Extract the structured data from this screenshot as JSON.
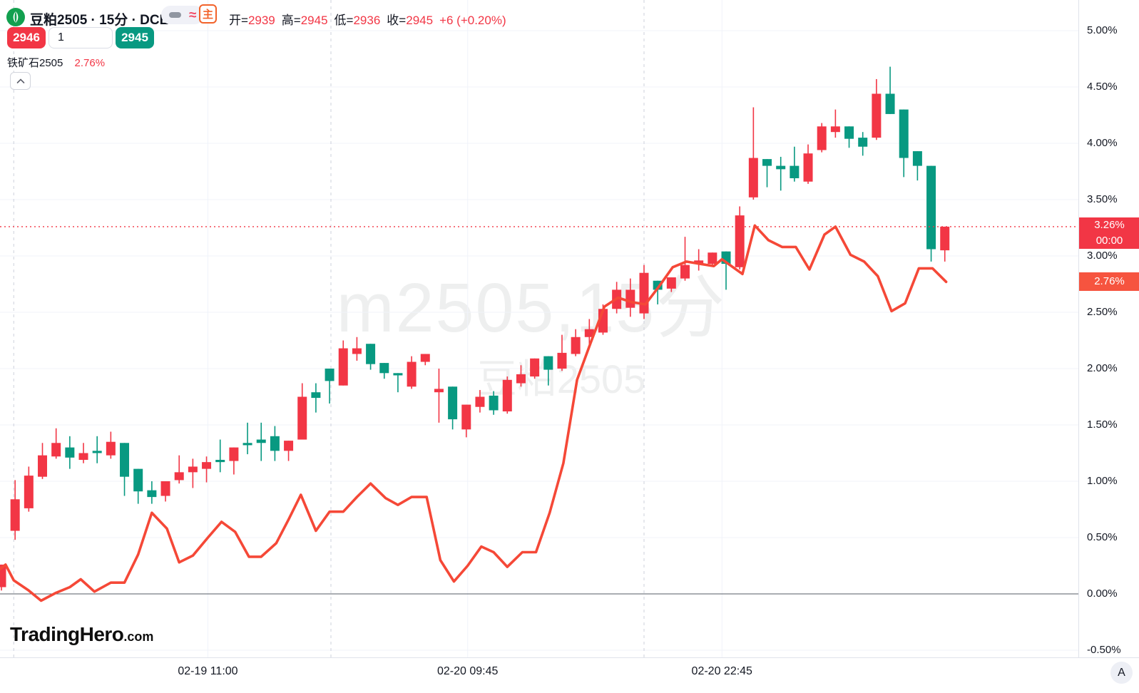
{
  "header": {
    "symbol_title": "豆粕2505 · 15分 · DCE",
    "wave_icon": "≈",
    "main_contract_badge": "主",
    "ohlc": {
      "open_label": "开=",
      "open": "2939",
      "high_label": "高=",
      "high": "2945",
      "low_label": "低=",
      "low": "2936",
      "close_label": "收=",
      "close": "2945",
      "change": "+6 (+0.20%)"
    },
    "sell_button": "2946",
    "qty_value": "1",
    "buy_button": "2945",
    "compare_symbol": "铁矿石2505",
    "compare_change": "2.76%"
  },
  "watermark": {
    "line1": "m2505,15分",
    "line2": "豆粕2505"
  },
  "price_axis": {
    "ticks": [
      {
        "value": 5.0,
        "label": "5.00%"
      },
      {
        "value": 4.5,
        "label": "4.50%"
      },
      {
        "value": 4.0,
        "label": "4.00%"
      },
      {
        "value": 3.5,
        "label": "3.50%"
      },
      {
        "value": 3.0,
        "label": "3.00%"
      },
      {
        "value": 2.5,
        "label": "2.50%"
      },
      {
        "value": 2.0,
        "label": "2.00%"
      },
      {
        "value": 1.5,
        "label": "1.50%"
      },
      {
        "value": 1.0,
        "label": "1.00%"
      },
      {
        "value": 0.5,
        "label": "0.50%"
      },
      {
        "value": 0.0,
        "label": "0.00%"
      },
      {
        "value": -0.5,
        "label": "-0.50%"
      }
    ],
    "price_badge": {
      "value": 3.26,
      "label": "3.26%",
      "countdown": "00:00"
    },
    "compare_badge": {
      "value": 2.77,
      "label": "2.76%"
    }
  },
  "time_axis": {
    "labels": [
      {
        "i": 15.1,
        "text": "02-19 11:00"
      },
      {
        "i": 34.1,
        "text": "02-20 09:45"
      },
      {
        "i": 52.7,
        "text": "02-20 22:45"
      }
    ],
    "auto_button": "A"
  },
  "branding": {
    "name": "TradingHero",
    "tld": ".com"
  },
  "colors": {
    "up": "#F23645",
    "down": "#089981",
    "compare_line": "#F54837",
    "price_line": "#F23645",
    "grid": "#F0F3FA",
    "session_break": "#CDD0DB",
    "zero_line": "#555B66",
    "price_badge_bg": "#F23645",
    "compare_badge_bg": "#F6543F"
  },
  "chart_data": {
    "type": "candlestick",
    "title": "m2505 豆粕2505 15分 percent-change chart with 铁矿石2505 compare line",
    "unit": "percent",
    "ylim": [
      -0.75,
      5.15
    ],
    "grid": true,
    "session_breaks_i": [
      0.9,
      24.1,
      47.0
    ],
    "candles_ohlc_pct": [
      [
        0.06,
        0.26,
        0.03,
        0.26
      ],
      [
        0.56,
        1.01,
        0.48,
        0.84
      ],
      [
        0.76,
        1.13,
        0.73,
        1.05
      ],
      [
        1.04,
        1.34,
        1.02,
        1.23
      ],
      [
        1.22,
        1.47,
        1.2,
        1.34
      ],
      [
        1.3,
        1.4,
        1.11,
        1.21
      ],
      [
        1.19,
        1.34,
        1.16,
        1.25
      ],
      [
        1.27,
        1.4,
        1.16,
        1.25
      ],
      [
        1.23,
        1.44,
        1.2,
        1.35
      ],
      [
        1.34,
        1.34,
        0.87,
        1.04
      ],
      [
        1.11,
        1.11,
        0.8,
        0.91
      ],
      [
        0.92,
        1.0,
        0.8,
        0.86
      ],
      [
        0.87,
        1.0,
        0.82,
        1.0
      ],
      [
        1.01,
        1.23,
        0.98,
        1.08
      ],
      [
        1.08,
        1.2,
        0.94,
        1.13
      ],
      [
        1.11,
        1.22,
        0.99,
        1.17
      ],
      [
        1.19,
        1.37,
        1.08,
        1.17
      ],
      [
        1.18,
        1.3,
        1.06,
        1.3
      ],
      [
        1.34,
        1.52,
        1.24,
        1.32
      ],
      [
        1.37,
        1.52,
        1.18,
        1.34
      ],
      [
        1.4,
        1.49,
        1.18,
        1.27
      ],
      [
        1.27,
        1.36,
        1.18,
        1.36
      ],
      [
        1.37,
        1.87,
        1.37,
        1.75
      ],
      [
        1.79,
        1.87,
        1.61,
        1.74
      ],
      [
        2.0,
        2.0,
        1.69,
        1.89
      ],
      [
        1.85,
        2.25,
        1.85,
        2.18
      ],
      [
        2.13,
        2.28,
        2.07,
        2.18
      ],
      [
        2.22,
        2.22,
        1.99,
        2.04
      ],
      [
        2.05,
        2.05,
        1.91,
        1.96
      ],
      [
        1.96,
        1.96,
        1.79,
        1.94
      ],
      [
        1.84,
        2.11,
        1.82,
        2.06
      ],
      [
        2.06,
        2.13,
        2.03,
        2.13
      ],
      [
        1.79,
        2.0,
        1.52,
        1.82
      ],
      [
        1.84,
        1.84,
        1.46,
        1.55
      ],
      [
        1.46,
        1.68,
        1.39,
        1.68
      ],
      [
        1.66,
        1.81,
        1.61,
        1.75
      ],
      [
        1.76,
        1.8,
        1.59,
        1.63
      ],
      [
        1.62,
        1.93,
        1.6,
        1.9
      ],
      [
        1.87,
        2.03,
        1.84,
        1.95
      ],
      [
        1.93,
        2.09,
        1.91,
        2.09
      ],
      [
        2.11,
        2.11,
        1.85,
        1.99
      ],
      [
        2.0,
        2.3,
        1.98,
        2.14
      ],
      [
        2.13,
        2.35,
        2.11,
        2.28
      ],
      [
        2.28,
        2.44,
        2.19,
        2.35
      ],
      [
        2.32,
        2.57,
        2.3,
        2.53
      ],
      [
        2.53,
        2.77,
        2.49,
        2.7
      ],
      [
        2.54,
        2.8,
        2.46,
        2.7
      ],
      [
        2.49,
        2.92,
        2.44,
        2.85
      ],
      [
        2.78,
        2.78,
        2.57,
        2.7
      ],
      [
        2.71,
        2.81,
        2.68,
        2.81
      ],
      [
        2.8,
        3.17,
        2.78,
        2.92
      ],
      [
        2.93,
        3.06,
        2.87,
        2.96
      ],
      [
        2.93,
        3.03,
        2.91,
        3.03
      ],
      [
        3.04,
        3.04,
        2.7,
        2.93
      ],
      [
        2.9,
        3.44,
        2.88,
        3.36
      ],
      [
        3.52,
        4.32,
        3.5,
        3.87
      ],
      [
        3.86,
        3.86,
        3.61,
        3.8
      ],
      [
        3.8,
        3.88,
        3.58,
        3.77
      ],
      [
        3.8,
        3.97,
        3.66,
        3.69
      ],
      [
        3.66,
        3.99,
        3.64,
        3.91
      ],
      [
        3.94,
        4.18,
        3.92,
        4.15
      ],
      [
        4.1,
        4.3,
        4.05,
        4.15
      ],
      [
        4.15,
        4.15,
        3.96,
        4.04
      ],
      [
        4.05,
        4.1,
        3.89,
        3.97
      ],
      [
        4.05,
        4.57,
        4.03,
        4.44
      ],
      [
        4.44,
        4.68,
        4.26,
        4.26
      ],
      [
        4.3,
        4.3,
        3.7,
        3.87
      ],
      [
        3.93,
        3.93,
        3.67,
        3.8
      ],
      [
        3.8,
        3.8,
        2.95,
        3.06
      ],
      [
        3.05,
        3.26,
        2.95,
        3.26
      ]
    ],
    "compare_line": {
      "name": "铁矿石2505",
      "points_i_pct": [
        [
          -0.1,
          0.22
        ],
        [
          0.3,
          0.26
        ],
        [
          0.9,
          0.12
        ],
        [
          2,
          0.03
        ],
        [
          2.9,
          -0.06
        ],
        [
          4,
          0.01
        ],
        [
          5,
          0.06
        ],
        [
          5.8,
          0.13
        ],
        [
          6.8,
          0.02
        ],
        [
          8,
          0.1
        ],
        [
          9,
          0.1
        ],
        [
          10,
          0.35
        ],
        [
          11,
          0.72
        ],
        [
          12.1,
          0.58
        ],
        [
          13,
          0.28
        ],
        [
          14,
          0.34
        ],
        [
          15.1,
          0.5
        ],
        [
          16.1,
          0.64
        ],
        [
          17.1,
          0.55
        ],
        [
          18.1,
          0.33
        ],
        [
          19,
          0.33
        ],
        [
          20.1,
          0.45
        ],
        [
          21,
          0.66
        ],
        [
          21.9,
          0.88
        ],
        [
          23,
          0.56
        ],
        [
          24,
          0.73
        ],
        [
          25,
          0.73
        ],
        [
          26,
          0.86
        ],
        [
          27,
          0.98
        ],
        [
          28.1,
          0.85
        ],
        [
          29,
          0.79
        ],
        [
          30,
          0.86
        ],
        [
          31.1,
          0.86
        ],
        [
          32.1,
          0.3
        ],
        [
          33.1,
          0.11
        ],
        [
          34.1,
          0.25
        ],
        [
          35.1,
          0.42
        ],
        [
          36,
          0.37
        ],
        [
          37,
          0.24
        ],
        [
          38.1,
          0.37
        ],
        [
          39.1,
          0.37
        ],
        [
          40.1,
          0.72
        ],
        [
          41.1,
          1.16
        ],
        [
          42.1,
          1.9
        ],
        [
          43.1,
          2.23
        ],
        [
          44.1,
          2.55
        ],
        [
          45.1,
          2.63
        ],
        [
          46.1,
          2.59
        ],
        [
          47.1,
          2.57
        ],
        [
          48.1,
          2.73
        ],
        [
          49.1,
          2.9
        ],
        [
          50.1,
          2.95
        ],
        [
          51.1,
          2.93
        ],
        [
          52.1,
          2.91
        ],
        [
          52.7,
          2.97
        ],
        [
          54.2,
          2.84
        ],
        [
          55.1,
          3.27
        ],
        [
          56.1,
          3.14
        ],
        [
          57.1,
          3.08
        ],
        [
          58.1,
          3.08
        ],
        [
          59.1,
          2.88
        ],
        [
          60.2,
          3.19
        ],
        [
          61,
          3.26
        ],
        [
          62.1,
          3.01
        ],
        [
          63.1,
          2.95
        ],
        [
          64.1,
          2.82
        ],
        [
          65.1,
          2.51
        ],
        [
          66.1,
          2.58
        ],
        [
          67.1,
          2.89
        ],
        [
          68.1,
          2.89
        ],
        [
          69.1,
          2.77
        ]
      ]
    },
    "price_line_pct": 3.26
  }
}
